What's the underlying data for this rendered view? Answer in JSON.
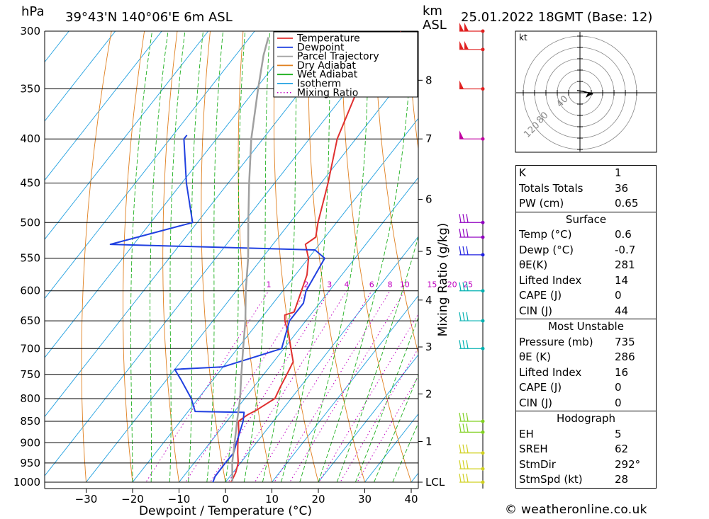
{
  "header": {
    "pressure_unit": "hPa",
    "location": "39°43'N  140°06'E  6m  ASL",
    "km_label": "km",
    "asl_label": "ASL",
    "datetime": "25.01.2022  18GMT  (Base: 12)"
  },
  "legend": {
    "items": [
      {
        "label": "Temperature",
        "color": "#e03030",
        "style": "solid"
      },
      {
        "label": "Dewpoint",
        "color": "#2040e0",
        "style": "solid"
      },
      {
        "label": "Parcel Trajectory",
        "color": "#a0a0a0",
        "style": "solid"
      },
      {
        "label": "Dry Adiabat",
        "color": "#e08020",
        "style": "solid"
      },
      {
        "label": "Wet Adiabat",
        "color": "#20b020",
        "style": "solid"
      },
      {
        "label": "Isotherm",
        "color": "#20a0e0",
        "style": "solid"
      },
      {
        "label": "Mixing Ratio",
        "color": "#c000c0",
        "style": "dotted"
      }
    ]
  },
  "chart_data": {
    "type": "line",
    "title": "39°43'N  140°06'E  6m  ASL",
    "xlabel": "Dewpoint / Temperature (°C)",
    "ylabel": "hPa",
    "y_scale": "log-pressure",
    "xlim": [
      -40,
      40
    ],
    "ylim": [
      1000,
      300
    ],
    "x_ticks": [
      -30,
      -20,
      -10,
      0,
      10,
      20,
      30,
      40
    ],
    "pressure_ticks": [
      300,
      350,
      400,
      450,
      500,
      550,
      600,
      650,
      700,
      750,
      800,
      850,
      900,
      950,
      1000
    ],
    "height_axis": {
      "label": "km ASL",
      "ticks": [
        {
          "label": "8",
          "pressure": 342
        },
        {
          "label": "7",
          "pressure": 400
        },
        {
          "label": "6",
          "pressure": 470
        },
        {
          "label": "5",
          "pressure": 540
        },
        {
          "label": "4",
          "pressure": 615
        },
        {
          "label": "3",
          "pressure": 697
        },
        {
          "label": "2",
          "pressure": 790
        },
        {
          "label": "1",
          "pressure": 897
        },
        {
          "label": "LCL",
          "pressure": 1000
        }
      ]
    },
    "mixing_ratio_axis": {
      "label": "Mixing Ratio (g/kg)",
      "values": [
        "1",
        "2",
        "3",
        "4",
        "6",
        "8",
        "10",
        "15",
        "20",
        "25"
      ]
    },
    "series": [
      {
        "name": "Temperature",
        "color": "#e03030",
        "points": [
          [
            1011,
            1.5
          ],
          [
            1000,
            1.2
          ],
          [
            975,
            0.6
          ],
          [
            950,
            -0.5
          ],
          [
            925,
            -2.3
          ],
          [
            900,
            -4.0
          ],
          [
            875,
            -5.6
          ],
          [
            850,
            -7.5
          ],
          [
            835,
            -6.6
          ],
          [
            825,
            -5.5
          ],
          [
            800,
            -3.5
          ],
          [
            775,
            -4.3
          ],
          [
            750,
            -5.0
          ],
          [
            725,
            -5.8
          ],
          [
            700,
            -8.5
          ],
          [
            675,
            -11.3
          ],
          [
            650,
            -14.5
          ],
          [
            640,
            -15.5
          ],
          [
            635,
            -14.0
          ],
          [
            600,
            -16.0
          ],
          [
            575,
            -17.5
          ],
          [
            550,
            -20.0
          ],
          [
            530,
            -23.0
          ],
          [
            520,
            -22.0
          ],
          [
            500,
            -24.0
          ],
          [
            450,
            -28.5
          ],
          [
            400,
            -34.0
          ],
          [
            350,
            -38.0
          ],
          [
            325,
            -38.5
          ],
          [
            300,
            -38.5
          ]
        ]
      },
      {
        "name": "Dewpoint",
        "color": "#2040e0",
        "points": [
          [
            1011,
            0.1
          ],
          [
            1000,
            -2.7
          ],
          [
            985,
            -3.2
          ],
          [
            950,
            -3.3
          ],
          [
            925,
            -3.2
          ],
          [
            900,
            -4.3
          ],
          [
            850,
            -6.5
          ],
          [
            830,
            -7.8
          ],
          [
            828,
            -18.5
          ],
          [
            800,
            -21.5
          ],
          [
            760,
            -27.0
          ],
          [
            740,
            -30.0
          ],
          [
            735,
            -20.0
          ],
          [
            700,
            -10.5
          ],
          [
            650,
            -13.5
          ],
          [
            620,
            -13.5
          ],
          [
            600,
            -15.0
          ],
          [
            550,
            -16.5
          ],
          [
            538,
            -20.0
          ],
          [
            530,
            -65.0
          ],
          [
            500,
            -51.0
          ],
          [
            450,
            -59.0
          ],
          [
            400,
            -67.0
          ],
          [
            396,
            -67.0
          ]
        ]
      },
      {
        "name": "Parcel Trajectory",
        "color": "#a0a0a0",
        "points": [
          [
            1000,
            1.5
          ],
          [
            950,
            -1.8
          ],
          [
            900,
            -4.7
          ],
          [
            850,
            -7.8
          ],
          [
            800,
            -11.0
          ],
          [
            750,
            -14.8
          ],
          [
            700,
            -18.8
          ],
          [
            650,
            -23.0
          ],
          [
            600,
            -28.0
          ],
          [
            550,
            -33.0
          ],
          [
            500,
            -39.0
          ],
          [
            450,
            -45.5
          ],
          [
            400,
            -52.5
          ],
          [
            350,
            -59.5
          ],
          [
            320,
            -64.0
          ],
          [
            305,
            -66.0
          ]
        ]
      }
    ],
    "wind_barbs": [
      {
        "pressure": 300,
        "color": "#e02020",
        "flags": 2
      },
      {
        "pressure": 315,
        "color": "#e02020",
        "flags": 2
      },
      {
        "pressure": 350,
        "color": "#e02020",
        "flags": 1
      },
      {
        "pressure": 400,
        "color": "#c000a0",
        "flags": 1
      },
      {
        "pressure": 500,
        "color": "#9000c0",
        "flags": 0
      },
      {
        "pressure": 520,
        "color": "#9000c0",
        "flags": 0
      },
      {
        "pressure": 545,
        "color": "#2020e0",
        "flags": 0
      },
      {
        "pressure": 600,
        "color": "#00b0b0",
        "flags": 0
      },
      {
        "pressure": 650,
        "color": "#00b0b0",
        "flags": 0
      },
      {
        "pressure": 700,
        "color": "#00b0b0",
        "flags": 0
      },
      {
        "pressure": 850,
        "color": "#80d020",
        "flags": 0
      },
      {
        "pressure": 875,
        "color": "#80d020",
        "flags": 0
      },
      {
        "pressure": 925,
        "color": "#d0d020",
        "flags": 0
      },
      {
        "pressure": 965,
        "color": "#d0d020",
        "flags": 0
      },
      {
        "pressure": 1000,
        "color": "#d0d020",
        "flags": 0
      }
    ],
    "hodograph": {
      "unit_label": "kt",
      "ring_labels": [
        "40",
        "80",
        "120"
      ]
    }
  },
  "indices": {
    "general": [
      {
        "label": "K",
        "value": "1"
      },
      {
        "label": "Totals Totals",
        "value": "36"
      },
      {
        "label": "PW (cm)",
        "value": "0.65"
      }
    ],
    "surface": {
      "title": "Surface",
      "rows": [
        {
          "label": "Temp (°C)",
          "value": "0.6"
        },
        {
          "label": "Dewp (°C)",
          "value": "-0.7"
        },
        {
          "label": "θE(K)",
          "value": "281"
        },
        {
          "label": "Lifted Index",
          "value": "14"
        },
        {
          "label": "CAPE (J)",
          "value": "0"
        },
        {
          "label": "CIN (J)",
          "value": "44"
        }
      ]
    },
    "most_unstable": {
      "title": "Most Unstable",
      "rows": [
        {
          "label": "Pressure (mb)",
          "value": "735"
        },
        {
          "label": "θE (K)",
          "value": "286"
        },
        {
          "label": "Lifted Index",
          "value": "16"
        },
        {
          "label": "CAPE (J)",
          "value": "0"
        },
        {
          "label": "CIN (J)",
          "value": "0"
        }
      ]
    },
    "hodograph": {
      "title": "Hodograph",
      "rows": [
        {
          "label": "EH",
          "value": "5"
        },
        {
          "label": "SREH",
          "value": "62"
        },
        {
          "label": "StmDir",
          "value": "292°"
        },
        {
          "label": "StmSpd (kt)",
          "value": "28"
        }
      ]
    }
  },
  "footer": {
    "credit": "© weatheronline.co.uk"
  }
}
